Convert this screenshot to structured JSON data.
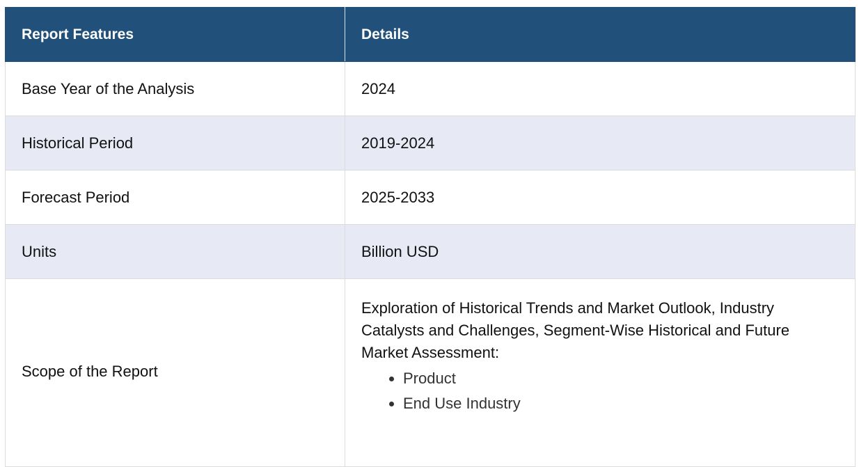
{
  "table": {
    "headers": {
      "feature": "Report Features",
      "details": "Details"
    },
    "rows": [
      {
        "feature": "Base Year of the Analysis",
        "details": "2024"
      },
      {
        "feature": "Historical Period",
        "details": "2019-2024"
      },
      {
        "feature": "Forecast Period",
        "details": "2025-2033"
      },
      {
        "feature": "Units",
        "details": "Billion USD"
      }
    ],
    "scope": {
      "feature": "Scope of the Report",
      "intro": "Exploration of Historical Trends and Market Outlook, Industry Catalysts and Challenges, Segment-Wise Historical and Future Market Assessment:",
      "items": [
        "Product",
        "End Use Industry"
      ]
    }
  },
  "colors": {
    "header_bg": "#21507a",
    "header_text": "#ffffff",
    "alt_row_bg": "#e7e9f5",
    "border": "#dcdcdc"
  }
}
